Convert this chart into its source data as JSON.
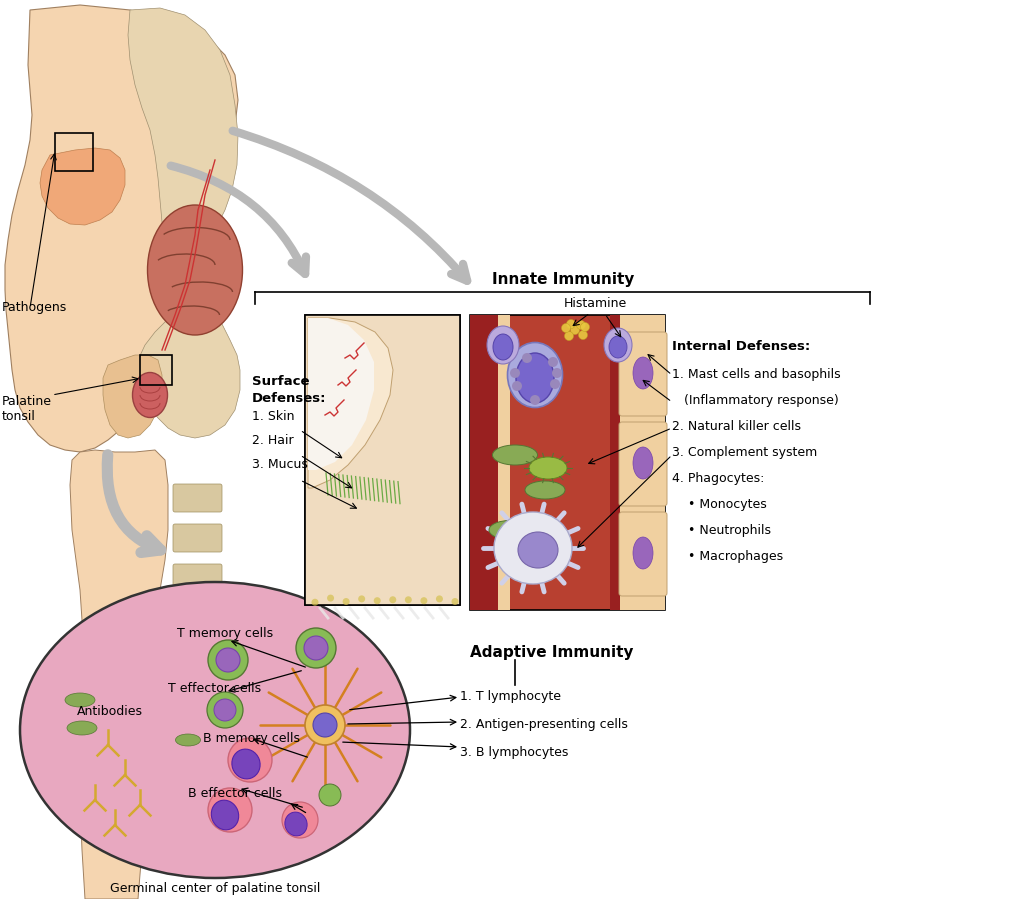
{
  "bg_color": "#ffffff",
  "innate_immunity_label": "Innate Immunity",
  "adaptive_immunity_label": "Adaptive Immunity",
  "pathogens_label": "Pathogens",
  "palatine_tonsil_label": "Palatine\ntonsil",
  "histamine_label": "Histamine",
  "germinal_center_label": "Germinal center of palatine tonsil",
  "surface_defenses_title": "Surface\nDefenses:",
  "surface_defenses_items": [
    "1. Skin",
    "2. Hair",
    "3. Mucus"
  ],
  "internal_defenses_title": "Internal Defenses:",
  "internal_defenses_items": [
    "1. Mast cells and basophils",
    "   (Inflammatory response)",
    "2. Natural killer cells",
    "3. Complement system",
    "4. Phagocytes:",
    "    • Monocytes",
    "    • Neutrophils",
    "    • Macrophages"
  ],
  "adaptive_items": [
    "1. T lymphocyte",
    "2. Antigen-presenting cells",
    "3. B lymphocytes"
  ],
  "t_memory_label": "T memory cells",
  "t_effector_label": "T effector cells",
  "b_memory_label": "B memory cells",
  "b_effector_label": "B effector cells",
  "antibodies_label": "Antibodies",
  "arrow_color": "#b8b8b8",
  "text_color": "#000000"
}
